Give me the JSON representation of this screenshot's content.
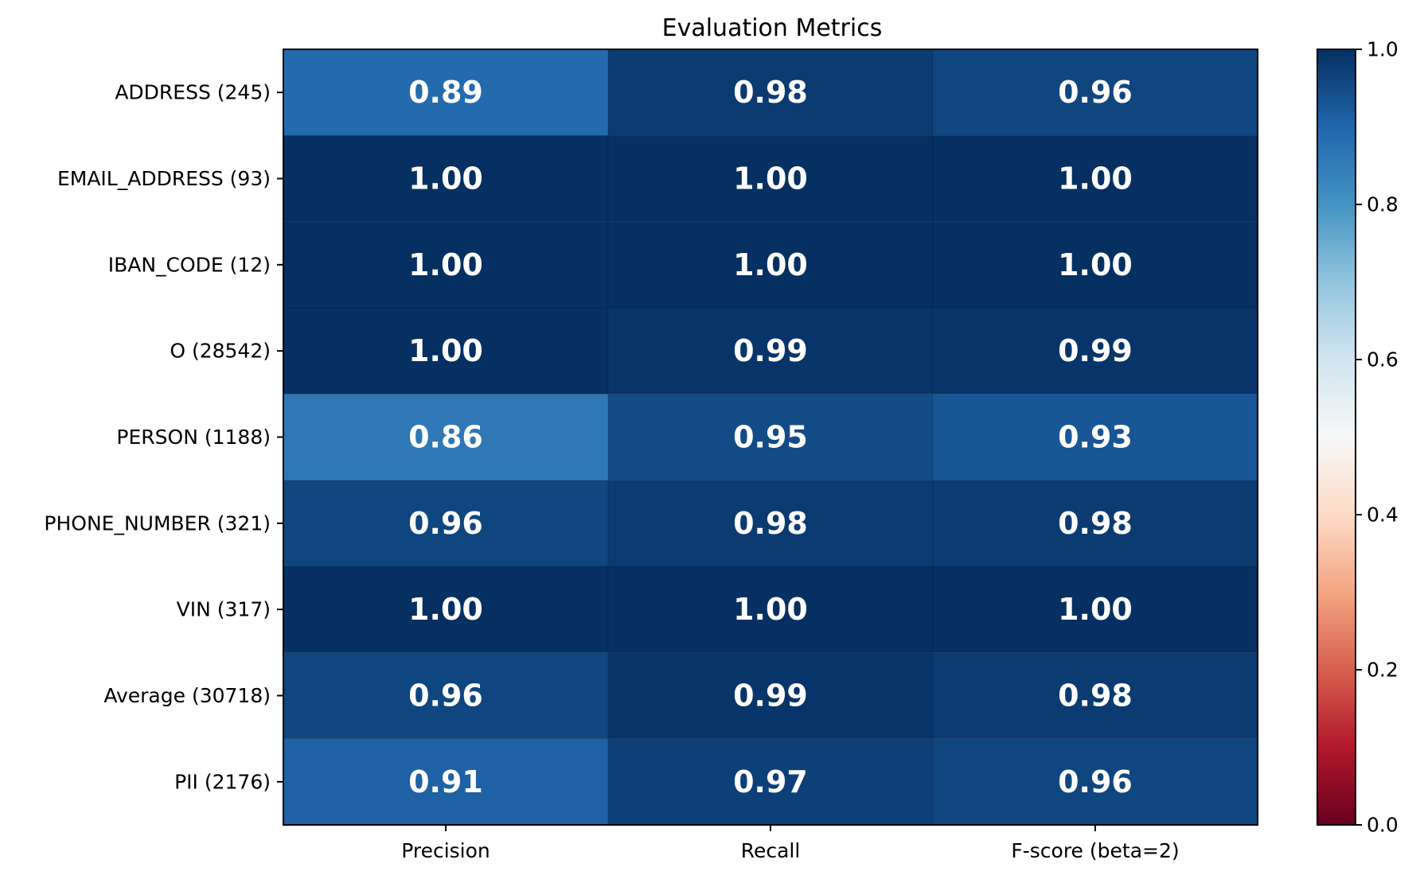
{
  "chart_data": {
    "type": "heatmap",
    "title": "Evaluation Metrics",
    "columns": [
      "Precision",
      "Recall",
      "F-score (beta=2)"
    ],
    "rows": [
      "ADDRESS (245)",
      "EMAIL_ADDRESS (93)",
      "IBAN_CODE (12)",
      "O (28542)",
      "PERSON (1188)",
      "PHONE_NUMBER (321)",
      "VIN (317)",
      "Average (30718)",
      "PII (2176)"
    ],
    "values": [
      [
        0.89,
        0.98,
        0.96
      ],
      [
        1.0,
        1.0,
        1.0
      ],
      [
        1.0,
        1.0,
        1.0
      ],
      [
        1.0,
        0.99,
        0.99
      ],
      [
        0.86,
        0.95,
        0.93
      ],
      [
        0.96,
        0.98,
        0.98
      ],
      [
        1.0,
        1.0,
        1.0
      ],
      [
        0.96,
        0.99,
        0.98
      ],
      [
        0.91,
        0.97,
        0.96
      ]
    ],
    "value_format": "0.00",
    "colormap": "RdBu",
    "vmin": 0.0,
    "vmax": 1.0,
    "colorbar_ticks": [
      "0.0",
      "0.2",
      "0.4",
      "0.6",
      "0.8",
      "1.0"
    ],
    "colorbar_values": [
      0.0,
      0.2,
      0.4,
      0.6,
      0.8,
      1.0
    ],
    "cell_text_color": "#ffffff"
  }
}
